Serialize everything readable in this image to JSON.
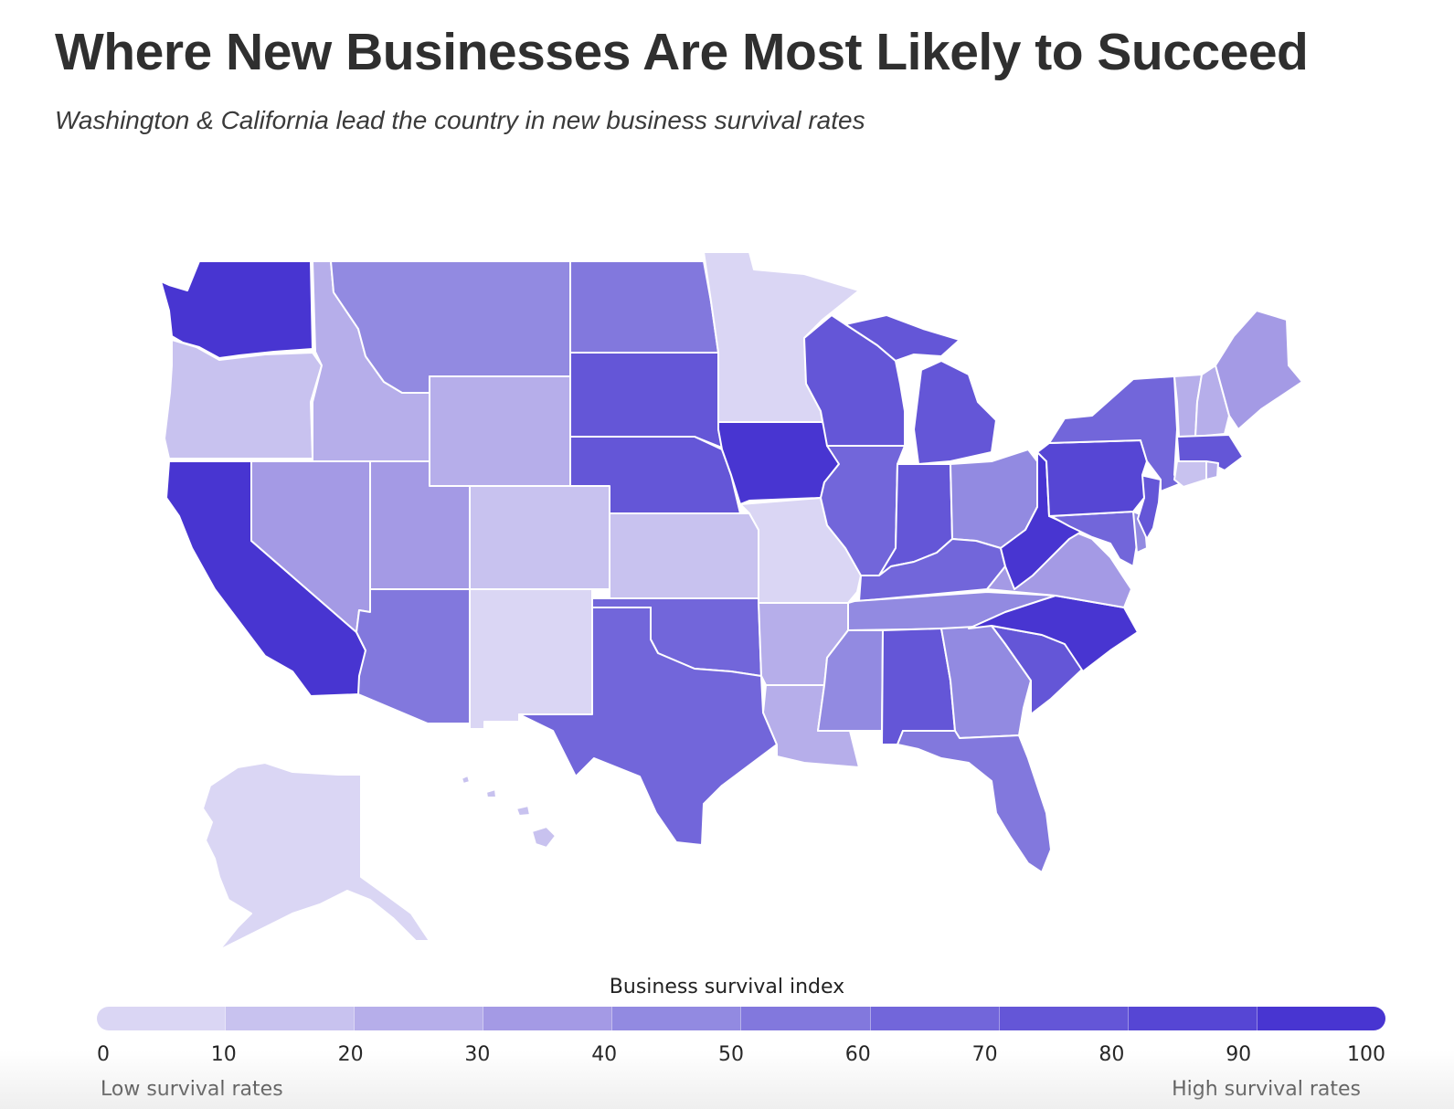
{
  "header": {
    "title": "Where New Businesses Are Most Likely to Succeed",
    "subtitle": "Washington & California lead the country in new business survival rates"
  },
  "legend": {
    "title": "Business survival index",
    "ticks": [
      "0",
      "10",
      "20",
      "30",
      "40",
      "50",
      "60",
      "70",
      "80",
      "90",
      "100"
    ],
    "low_label": "Low survival rates",
    "high_label": "High survival rates",
    "colors": [
      "#dad6f4",
      "#c8c2ef",
      "#b6aeea",
      "#a49ae5",
      "#928ae1",
      "#8278dd",
      "#7266da",
      "#6456d7",
      "#5646d4",
      "#4835d1"
    ]
  },
  "map_data": {
    "type": "choropleth",
    "region": "United States",
    "value_label": "Business survival index",
    "range": [
      0,
      100
    ],
    "states": [
      {
        "state": "Washington",
        "value": 95
      },
      {
        "state": "Oregon",
        "value": 15
      },
      {
        "state": "California",
        "value": 95
      },
      {
        "state": "Nevada",
        "value": 35
      },
      {
        "state": "Idaho",
        "value": 25
      },
      {
        "state": "Montana",
        "value": 45
      },
      {
        "state": "Wyoming",
        "value": 25
      },
      {
        "state": "Utah",
        "value": 35
      },
      {
        "state": "Arizona",
        "value": 55
      },
      {
        "state": "Colorado",
        "value": 15
      },
      {
        "state": "New Mexico",
        "value": 5
      },
      {
        "state": "North Dakota",
        "value": 55
      },
      {
        "state": "South Dakota",
        "value": 75
      },
      {
        "state": "Nebraska",
        "value": 75
      },
      {
        "state": "Kansas",
        "value": 15
      },
      {
        "state": "Oklahoma",
        "value": 65
      },
      {
        "state": "Texas",
        "value": 65
      },
      {
        "state": "Minnesota",
        "value": 5
      },
      {
        "state": "Iowa",
        "value": 95
      },
      {
        "state": "Missouri",
        "value": 5
      },
      {
        "state": "Arkansas",
        "value": 25
      },
      {
        "state": "Louisiana",
        "value": 25
      },
      {
        "state": "Wisconsin",
        "value": 75
      },
      {
        "state": "Illinois",
        "value": 65
      },
      {
        "state": "Michigan",
        "value": 75
      },
      {
        "state": "Indiana",
        "value": 75
      },
      {
        "state": "Ohio",
        "value": 45
      },
      {
        "state": "Kentucky",
        "value": 65
      },
      {
        "state": "Tennessee",
        "value": 45
      },
      {
        "state": "Mississippi",
        "value": 45
      },
      {
        "state": "Alabama",
        "value": 75
      },
      {
        "state": "Georgia",
        "value": 45
      },
      {
        "state": "Florida",
        "value": 55
      },
      {
        "state": "South Carolina",
        "value": 75
      },
      {
        "state": "North Carolina",
        "value": 95
      },
      {
        "state": "Virginia",
        "value": 35
      },
      {
        "state": "West Virginia",
        "value": 95
      },
      {
        "state": "Maryland",
        "value": 65
      },
      {
        "state": "Delaware",
        "value": 45
      },
      {
        "state": "New Jersey",
        "value": 75
      },
      {
        "state": "Pennsylvania",
        "value": 85
      },
      {
        "state": "New York",
        "value": 65
      },
      {
        "state": "Connecticut",
        "value": 15
      },
      {
        "state": "Rhode Island",
        "value": 25
      },
      {
        "state": "Massachusetts",
        "value": 75
      },
      {
        "state": "Vermont",
        "value": 25
      },
      {
        "state": "New Hampshire",
        "value": 25
      },
      {
        "state": "Maine",
        "value": 35
      },
      {
        "state": "Alaska",
        "value": 5
      },
      {
        "state": "Hawaii",
        "value": 15
      }
    ]
  }
}
